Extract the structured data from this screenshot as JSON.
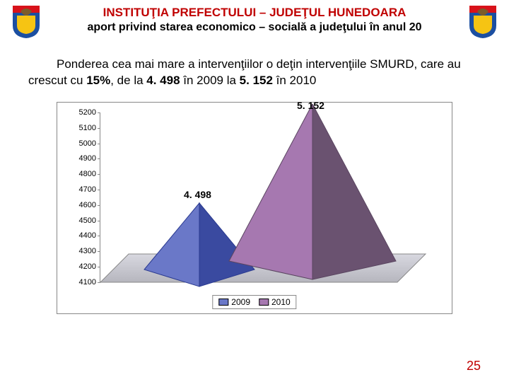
{
  "header": {
    "title": "INSTITUŢIA PREFECTULUI – JUDEŢUL HUNEDOARA",
    "subtitle": "aport privind starea economico – socială a judeţului în anul 20",
    "title_color": "#c00000"
  },
  "crest": {
    "colors": {
      "shield_blue": "#1c4fa1",
      "shield_yellow": "#f6c413",
      "shield_red": "#d8121a",
      "eagle": "#7c5c2b"
    }
  },
  "paragraph": {
    "prefix": "Ponderea cea mai mare a intervenţiilor o deţin intervenţiile SMURD, care au crescut cu ",
    "pct": "15%",
    "mid1": ", de la ",
    "v2009": "4. 498",
    "mid2": " în 2009 la  ",
    "v2010": "5. 152",
    "suffix": " în 2010"
  },
  "chart": {
    "type": "3d-pyramid",
    "series": [
      {
        "name": "2009",
        "value": 4498,
        "label": "4. 498",
        "face_color": "#6a78c8",
        "side_color": "#3a4aa0"
      },
      {
        "name": "2010",
        "value": 5152,
        "label": "5. 152",
        "face_color": "#a678b0",
        "side_color": "#6a5270"
      }
    ],
    "y_axis": {
      "min": 4100,
      "max": 5200,
      "step": 100,
      "ticks": [
        "5200",
        "5100",
        "5000",
        "4900",
        "4800",
        "4700",
        "4600",
        "4500",
        "4400",
        "4300",
        "4200",
        "4100"
      ],
      "fontsize": 11
    },
    "legend": {
      "items": [
        {
          "label": "2009",
          "color": "#6a78c8"
        },
        {
          "label": "2010",
          "color": "#a678b0"
        }
      ]
    },
    "colors": {
      "border": "#888888",
      "background": "#ffffff",
      "text": "#000000",
      "floor_top": "#d8d8e0",
      "floor_bottom": "#b6b6be"
    },
    "label_fontsize": 14
  },
  "page_number": "25",
  "page_number_color": "#c00000"
}
